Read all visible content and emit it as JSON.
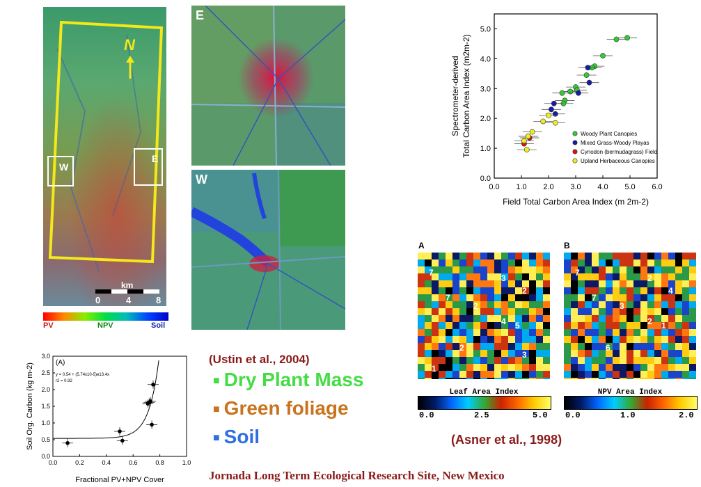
{
  "colors": {
    "red_box": "#cc1111",
    "blue_box": "#2f6fe0",
    "green_text": "#44dd44",
    "orange_text": "#c8741e",
    "dark_red": "#8b1a1a"
  },
  "main_map": {
    "north": "N",
    "scale_unit": "km",
    "scale_ticks": [
      "0",
      "4",
      "8"
    ],
    "box_w": "W",
    "box_e": "E"
  },
  "gradient_bar": {
    "left": "PV",
    "mid": "NPV",
    "right": "Soil"
  },
  "panels": {
    "e_label": "E",
    "w_label": "W"
  },
  "legend": {
    "citation": "(Ustin et al., 2004)",
    "items": [
      {
        "marker": "■",
        "label": "Dry Plant Mass",
        "color": "#44dd44"
      },
      {
        "marker": "■",
        "label": "Green foliage",
        "color": "#c8741e"
      },
      {
        "marker": "■",
        "label": "Soil",
        "color": "#2f6fe0"
      }
    ]
  },
  "asner": {
    "panel_a": "A",
    "panel_b": "B",
    "a_numbers": [
      "7",
      "7",
      "3",
      "2",
      "4",
      "5",
      "2",
      "2",
      "3",
      "1"
    ],
    "b_numbers": [
      "7",
      "7",
      "2",
      "4",
      "2",
      "1",
      "3",
      "6"
    ],
    "bar_a_title": "Leaf Area Index",
    "bar_a_ticks": [
      "0.0",
      "2.5",
      "5.0"
    ],
    "bar_b_title": "NPV Area Index",
    "bar_b_ticks": [
      "0.0",
      "1.0",
      "2.0"
    ],
    "citation": "(Asner et al., 1998)"
  },
  "footer": "Jornada Long Term Ecological Research  Site, New Mexico",
  "chart_data": [
    {
      "type": "scatter",
      "xlabel": "Field Total Carbon Area Index (m 2m-2)",
      "ylabel_line1": "Spectrometer-derived",
      "ylabel_line2": "Total Carbon Area Index (m2m-2)",
      "xlim": [
        0,
        6
      ],
      "ylim": [
        0,
        5.5
      ],
      "xticks": [
        "0.0",
        "1.0",
        "2.0",
        "3.0",
        "4.0",
        "5.0",
        "6.0"
      ],
      "yticks": [
        "0.0",
        "1.0",
        "2.0",
        "3.0",
        "4.0",
        "5.0"
      ],
      "legend_position": "lower-right",
      "series": [
        {
          "name": "Woody Plant Canopies",
          "color": "#33cc33",
          "points": [
            [
              4.9,
              4.7
            ],
            [
              4.5,
              4.65
            ],
            [
              4.0,
              4.1
            ],
            [
              3.7,
              3.75
            ],
            [
              3.6,
              3.7
            ],
            [
              3.4,
              3.45
            ],
            [
              3.0,
              3.05
            ],
            [
              3.05,
              2.95
            ],
            [
              2.8,
              2.9
            ],
            [
              2.5,
              2.85
            ],
            [
              2.6,
              2.6
            ],
            [
              2.55,
              2.5
            ]
          ]
        },
        {
          "name": "Mixed Grass-Woody Playas",
          "color": "#1a1aaa",
          "points": [
            [
              3.45,
              3.7
            ],
            [
              3.5,
              3.2
            ],
            [
              3.1,
              2.85
            ],
            [
              2.2,
              2.5
            ],
            [
              2.1,
              2.3
            ],
            [
              2.25,
              2.15
            ]
          ]
        },
        {
          "name": "Cynodon (bermudagrass) Field",
          "color": "#dd1111",
          "points": [
            [
              1.1,
              1.15
            ],
            [
              1.3,
              1.35
            ]
          ]
        },
        {
          "name": "Upland Herbaceous Canopies",
          "color": "#eeee22",
          "points": [
            [
              2.0,
              2.1
            ],
            [
              2.25,
              1.85
            ],
            [
              1.8,
              1.9
            ],
            [
              1.4,
              1.55
            ],
            [
              1.25,
              1.4
            ],
            [
              1.2,
              0.95
            ],
            [
              1.1,
              1.25
            ]
          ]
        }
      ]
    },
    {
      "type": "scatter",
      "panel_label": "(A)",
      "xlabel": "Fractional PV+NPV Cover",
      "ylabel": "Soil Org. Carbon (kg m-2)",
      "xlim": [
        0,
        1
      ],
      "ylim": [
        0,
        3
      ],
      "xticks": [
        "0.0",
        "0.2",
        "0.4",
        "0.6",
        "0.8",
        "1.0"
      ],
      "yticks": [
        "0.0",
        "0.5",
        "1.0",
        "1.5",
        "2.0",
        "2.5",
        "3.0"
      ],
      "equation": "y = 0.54 + (5.74x10-5)e13.4x",
      "r2": "r2 = 0.92",
      "points": [
        [
          0.11,
          0.4
        ],
        [
          0.5,
          0.75
        ],
        [
          0.52,
          0.47
        ],
        [
          0.71,
          1.58
        ],
        [
          0.72,
          1.62
        ],
        [
          0.73,
          1.65
        ],
        [
          0.75,
          2.15
        ],
        [
          0.74,
          0.95
        ]
      ]
    }
  ]
}
